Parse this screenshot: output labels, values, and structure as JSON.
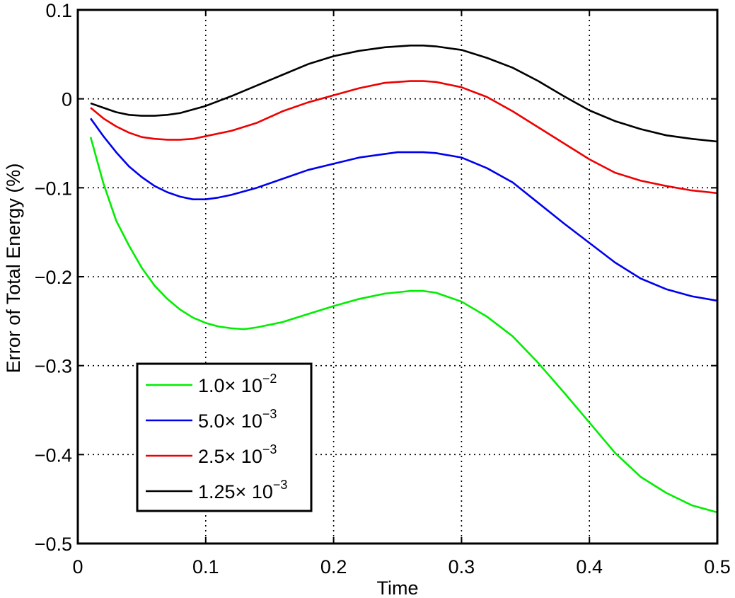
{
  "chart_data": {
    "type": "line",
    "title": "",
    "xlabel": "Time",
    "ylabel": "Error of Total Energy (%)",
    "xlim": [
      0,
      0.5
    ],
    "ylim": [
      -0.5,
      0.1
    ],
    "grid": true,
    "legend_position": "lower-left",
    "x_ticks": [
      0,
      0.1,
      0.2,
      0.3,
      0.4,
      0.5
    ],
    "x_tick_labels": [
      "0",
      "0.1",
      "0.2",
      "0.3",
      "0.4",
      "0.5"
    ],
    "y_ticks": [
      0.1,
      0,
      -0.1,
      -0.2,
      -0.3,
      -0.4,
      -0.5
    ],
    "y_tick_labels": [
      "0.1",
      "0",
      "−0.1",
      "−0.2",
      "−0.3",
      "−0.4",
      "−0.5"
    ],
    "series": [
      {
        "name": "1.0× 10^-2",
        "label_base": "1.0× 10",
        "label_exp": "−2",
        "color": "#00ee00",
        "x": [
          0.01,
          0.02,
          0.03,
          0.04,
          0.05,
          0.06,
          0.07,
          0.08,
          0.09,
          0.1,
          0.11,
          0.12,
          0.13,
          0.14,
          0.16,
          0.18,
          0.2,
          0.22,
          0.24,
          0.26,
          0.27,
          0.28,
          0.3,
          0.32,
          0.34,
          0.36,
          0.38,
          0.4,
          0.42,
          0.44,
          0.46,
          0.48,
          0.5
        ],
        "y": [
          -0.043,
          -0.095,
          -0.137,
          -0.165,
          -0.19,
          -0.21,
          -0.225,
          -0.237,
          -0.246,
          -0.252,
          -0.256,
          -0.258,
          -0.259,
          -0.257,
          -0.251,
          -0.242,
          -0.233,
          -0.225,
          -0.219,
          -0.216,
          -0.216,
          -0.218,
          -0.228,
          -0.245,
          -0.267,
          -0.297,
          -0.33,
          -0.364,
          -0.398,
          -0.425,
          -0.443,
          -0.457,
          -0.465
        ]
      },
      {
        "name": "5.0× 10^-3",
        "label_base": "5.0× 10",
        "label_exp": "−3",
        "color": "#0000ee",
        "x": [
          0.01,
          0.02,
          0.03,
          0.04,
          0.05,
          0.06,
          0.07,
          0.08,
          0.09,
          0.1,
          0.11,
          0.12,
          0.14,
          0.16,
          0.18,
          0.2,
          0.22,
          0.24,
          0.25,
          0.26,
          0.27,
          0.28,
          0.3,
          0.32,
          0.34,
          0.36,
          0.38,
          0.4,
          0.42,
          0.44,
          0.46,
          0.48,
          0.5
        ],
        "y": [
          -0.022,
          -0.042,
          -0.06,
          -0.076,
          -0.088,
          -0.098,
          -0.105,
          -0.11,
          -0.113,
          -0.113,
          -0.111,
          -0.108,
          -0.1,
          -0.09,
          -0.08,
          -0.073,
          -0.066,
          -0.062,
          -0.06,
          -0.06,
          -0.06,
          -0.061,
          -0.066,
          -0.078,
          -0.094,
          -0.117,
          -0.14,
          -0.162,
          -0.184,
          -0.202,
          -0.214,
          -0.222,
          -0.227
        ]
      },
      {
        "name": "2.5× 10^-3",
        "label_base": "2.5× 10",
        "label_exp": "−3",
        "color": "#ee0000",
        "x": [
          0.01,
          0.02,
          0.03,
          0.04,
          0.05,
          0.06,
          0.07,
          0.08,
          0.09,
          0.1,
          0.12,
          0.14,
          0.16,
          0.18,
          0.2,
          0.22,
          0.24,
          0.26,
          0.27,
          0.28,
          0.3,
          0.32,
          0.34,
          0.36,
          0.38,
          0.4,
          0.42,
          0.44,
          0.46,
          0.48,
          0.5
        ],
        "y": [
          -0.01,
          -0.022,
          -0.031,
          -0.038,
          -0.043,
          -0.045,
          -0.046,
          -0.046,
          -0.045,
          -0.042,
          -0.036,
          -0.027,
          -0.014,
          -0.004,
          0.004,
          0.012,
          0.018,
          0.02,
          0.02,
          0.019,
          0.013,
          0.002,
          -0.014,
          -0.032,
          -0.05,
          -0.068,
          -0.083,
          -0.092,
          -0.098,
          -0.103,
          -0.106
        ]
      },
      {
        "name": "1.25× 10^-3",
        "label_base": "1.25× 10",
        "label_exp": "−3",
        "color": "#000000",
        "x": [
          0.01,
          0.02,
          0.03,
          0.04,
          0.05,
          0.06,
          0.07,
          0.08,
          0.09,
          0.1,
          0.12,
          0.14,
          0.16,
          0.18,
          0.2,
          0.22,
          0.24,
          0.26,
          0.27,
          0.28,
          0.3,
          0.32,
          0.34,
          0.36,
          0.38,
          0.4,
          0.42,
          0.44,
          0.46,
          0.48,
          0.5
        ],
        "y": [
          -0.005,
          -0.01,
          -0.015,
          -0.018,
          -0.019,
          -0.019,
          -0.018,
          -0.016,
          -0.012,
          -0.008,
          0.003,
          0.015,
          0.027,
          0.039,
          0.048,
          0.054,
          0.058,
          0.06,
          0.06,
          0.059,
          0.055,
          0.046,
          0.035,
          0.02,
          0.003,
          -0.013,
          -0.025,
          -0.034,
          -0.041,
          -0.045,
          -0.048
        ]
      }
    ]
  }
}
